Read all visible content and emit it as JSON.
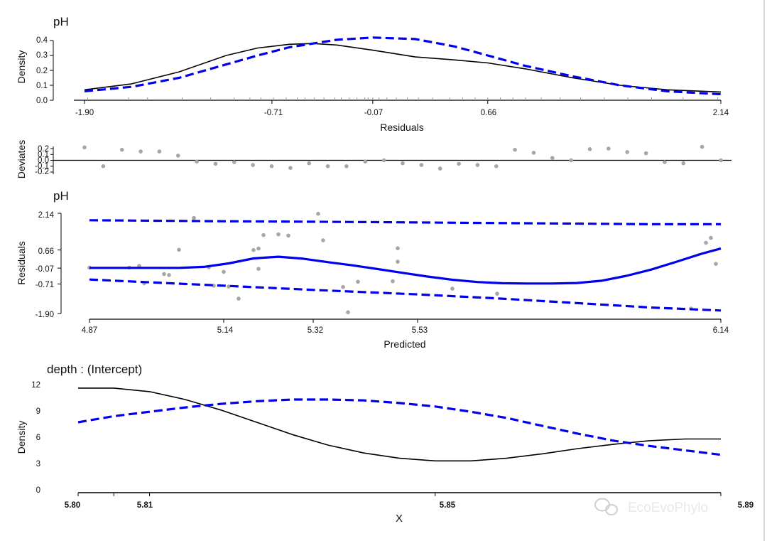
{
  "frame_border_color": "#d9d9d9",
  "panels": {
    "density_residuals": {
      "title": "pH",
      "ylabel": "Density",
      "xlabel": "Residuals",
      "yticks": [
        "0.0",
        "0.1",
        "0.2",
        "0.3",
        "0.4"
      ],
      "xticks": [
        "-1.90",
        "-0.71",
        "-0.07",
        "0.66",
        "2.14"
      ]
    },
    "deviates": {
      "ylabel": "Deviates",
      "yticks": [
        "0.2",
        "0.1",
        "0.0",
        "-0.1",
        "-0.2"
      ]
    },
    "residuals_vs_predicted": {
      "title": "pH",
      "ylabel": "Residuals",
      "xlabel": "Predicted",
      "yticks": [
        "2.14",
        "0.66",
        "-0.07",
        "-0.71",
        "-1.90"
      ],
      "xticks": [
        "4.87",
        "5.14",
        "5.32",
        "5.53",
        "6.14"
      ]
    },
    "depth_intercept": {
      "title": "depth : (Intercept)",
      "ylabel": "Density",
      "xlabel": "X",
      "yticks": [
        "0",
        "3",
        "6",
        "9",
        "12"
      ],
      "xticks": [
        "5.80",
        "5.81",
        "5.85",
        "5.89"
      ]
    }
  },
  "watermark": {
    "icon": "wechat-icon",
    "text": "EcoEvoPhylo"
  },
  "chart_data": [
    {
      "type": "line",
      "panel": "density_residuals",
      "title": "pH",
      "xlabel": "Residuals",
      "ylabel": "Density",
      "xlim": [
        -1.9,
        2.14
      ],
      "ylim": [
        0,
        0.4
      ],
      "xtick_values": [
        -1.9,
        -0.71,
        -0.07,
        0.66,
        2.14
      ],
      "series": [
        {
          "style": "solid",
          "color": "#000000",
          "x": [
            -1.9,
            -1.6,
            -1.3,
            -1.0,
            -0.8,
            -0.6,
            -0.45,
            -0.3,
            -0.07,
            0.2,
            0.45,
            0.66,
            0.9,
            1.2,
            1.5,
            1.8,
            2.14
          ],
          "y": [
            0.07,
            0.11,
            0.19,
            0.3,
            0.35,
            0.375,
            0.38,
            0.37,
            0.335,
            0.29,
            0.27,
            0.25,
            0.21,
            0.15,
            0.1,
            0.07,
            0.055
          ]
        },
        {
          "style": "dashed",
          "color": "#0000ee",
          "x": [
            -1.9,
            -1.6,
            -1.3,
            -1.0,
            -0.8,
            -0.6,
            -0.45,
            -0.3,
            -0.07,
            0.2,
            0.45,
            0.66,
            0.9,
            1.2,
            1.5,
            1.8,
            2.14
          ],
          "y": [
            0.06,
            0.09,
            0.15,
            0.24,
            0.3,
            0.355,
            0.38,
            0.405,
            0.42,
            0.41,
            0.36,
            0.3,
            0.23,
            0.16,
            0.1,
            0.06,
            0.04
          ]
        }
      ],
      "rug": [
        -1.88,
        -1.62,
        -1.5,
        -1.28,
        -1.1,
        -0.95,
        -0.85,
        -0.78,
        -0.7,
        -0.62,
        -0.55,
        -0.5,
        -0.44,
        -0.38,
        -0.31,
        -0.27,
        -0.22,
        -0.17,
        -0.12,
        -0.1,
        -0.07,
        -0.03,
        0.02,
        0.08,
        0.15,
        0.22,
        0.31,
        0.42,
        0.5,
        0.58,
        0.66,
        0.74,
        0.82,
        0.9,
        1.0,
        1.12,
        1.25,
        1.4,
        1.55,
        1.7,
        1.9,
        2.12
      ]
    },
    {
      "type": "scatter",
      "panel": "deviates",
      "ylabel": "Deviates",
      "ylim": [
        -0.25,
        0.25
      ],
      "reference_line": 0,
      "points": [
        0.22,
        -0.1,
        0.18,
        0.15,
        0.15,
        0.08,
        -0.02,
        -0.06,
        -0.03,
        -0.08,
        -0.1,
        -0.13,
        -0.05,
        -0.1,
        -0.1,
        -0.02,
        0.0,
        -0.05,
        -0.08,
        -0.14,
        -0.06,
        -0.08,
        -0.1,
        0.18,
        0.13,
        0.04,
        0.0,
        0.19,
        0.2,
        0.14,
        0.12,
        -0.03,
        -0.05,
        0.23,
        0.0
      ]
    },
    {
      "type": "scatter",
      "panel": "residuals_vs_predicted",
      "title": "pH",
      "xlabel": "Predicted",
      "ylabel": "Residuals",
      "xlim": [
        4.87,
        6.14
      ],
      "ylim": [
        -1.9,
        2.14
      ],
      "xtick_values": [
        4.87,
        5.14,
        5.32,
        5.53,
        6.14
      ],
      "points": {
        "x": [
          4.87,
          4.95,
          4.97,
          4.98,
          5.02,
          5.03,
          5.05,
          5.08,
          5.11,
          5.12,
          5.14,
          5.15,
          5.17,
          5.2,
          5.21,
          5.21,
          5.22,
          5.25,
          5.27,
          5.33,
          5.34,
          5.38,
          5.39,
          5.41,
          5.48,
          5.49,
          5.49,
          5.6,
          5.69,
          6.08,
          6.11,
          6.12,
          6.13
        ],
        "y": [
          -0.05,
          -0.05,
          0.02,
          -0.68,
          -0.31,
          -0.35,
          0.67,
          1.95,
          -0.04,
          -0.78,
          -0.22,
          -0.81,
          -1.3,
          0.66,
          -0.1,
          0.72,
          1.26,
          1.29,
          1.24,
          2.12,
          1.05,
          -0.83,
          -1.85,
          -0.62,
          -0.6,
          0.19,
          0.73,
          -0.9,
          -1.1,
          -1.7,
          0.95,
          1.15,
          0.1
        ]
      },
      "lines": [
        {
          "style": "solid",
          "color": "#0000ee",
          "x": [
            4.87,
            4.95,
            5.0,
            5.05,
            5.1,
            5.15,
            5.2,
            5.25,
            5.3,
            5.35,
            5.4,
            5.45,
            5.5,
            5.55,
            5.6,
            5.65,
            5.7,
            5.75,
            5.8,
            5.85,
            5.9,
            5.95,
            6.0,
            6.05,
            6.1,
            6.14
          ],
          "y": [
            -0.06,
            -0.06,
            -0.06,
            -0.06,
            -0.02,
            0.12,
            0.32,
            0.39,
            0.31,
            0.17,
            0.04,
            -0.11,
            -0.26,
            -0.41,
            -0.54,
            -0.63,
            -0.68,
            -0.69,
            -0.69,
            -0.67,
            -0.58,
            -0.38,
            -0.13,
            0.18,
            0.5,
            0.72
          ]
        },
        {
          "style": "dashed",
          "color": "#0000ee",
          "x": [
            4.87,
            5.14,
            5.32,
            5.53,
            5.8,
            6.0,
            6.14
          ],
          "y": [
            1.86,
            1.82,
            1.8,
            1.77,
            1.73,
            1.7,
            1.7
          ]
        },
        {
          "style": "dashed",
          "color": "#0000ee",
          "x": [
            4.87,
            5.0,
            5.14,
            5.32,
            5.53,
            5.7,
            5.85,
            6.0,
            6.14
          ],
          "y": [
            -0.53,
            -0.65,
            -0.78,
            -0.95,
            -1.13,
            -1.3,
            -1.48,
            -1.66,
            -1.78
          ]
        }
      ]
    },
    {
      "type": "line",
      "panel": "depth_intercept",
      "title": "depth : (Intercept)",
      "xlabel": "X",
      "ylabel": "Density",
      "xlim": [
        5.8,
        5.89
      ],
      "ylim": [
        0,
        12
      ],
      "xtick_values": [
        5.8,
        5.81,
        5.85,
        5.89
      ],
      "series": [
        {
          "style": "solid",
          "color": "#000000",
          "x": [
            5.8,
            5.805,
            5.81,
            5.815,
            5.82,
            5.825,
            5.83,
            5.835,
            5.84,
            5.845,
            5.85,
            5.855,
            5.86,
            5.865,
            5.87,
            5.875,
            5.88,
            5.885,
            5.89
          ],
          "y": [
            11.6,
            11.6,
            11.2,
            10.3,
            9.1,
            7.7,
            6.3,
            5.1,
            4.2,
            3.6,
            3.3,
            3.3,
            3.6,
            4.1,
            4.7,
            5.2,
            5.6,
            5.8,
            5.8
          ]
        },
        {
          "style": "dashed",
          "color": "#0000ee",
          "x": [
            5.8,
            5.805,
            5.81,
            5.815,
            5.82,
            5.825,
            5.83,
            5.835,
            5.84,
            5.845,
            5.85,
            5.855,
            5.86,
            5.865,
            5.87,
            5.875,
            5.88,
            5.885,
            5.89
          ],
          "y": [
            7.7,
            8.4,
            8.9,
            9.4,
            9.8,
            10.1,
            10.3,
            10.3,
            10.2,
            9.9,
            9.5,
            8.9,
            8.2,
            7.3,
            6.4,
            5.6,
            5.0,
            4.5,
            4.0
          ]
        }
      ]
    }
  ]
}
